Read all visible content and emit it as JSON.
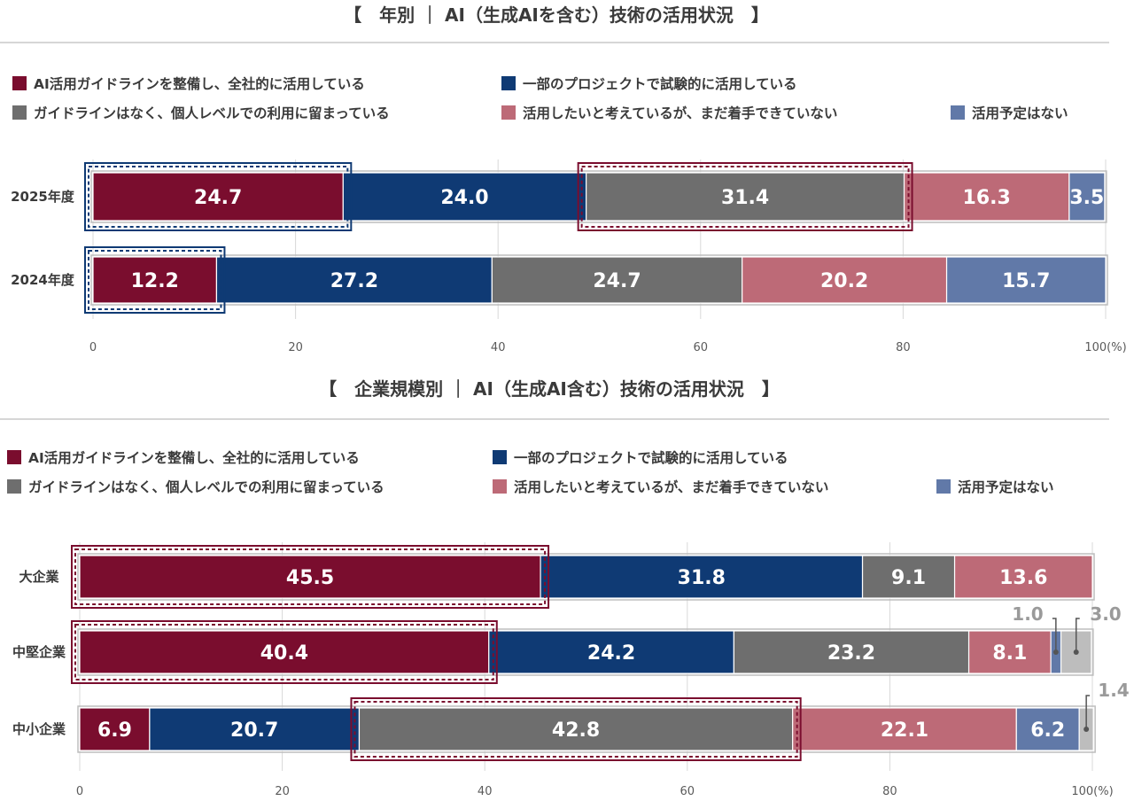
{
  "legend": [
    {
      "label": "AI活用ガイドラインを整備し、全社的に活用している",
      "color": "#7a0d2e"
    },
    {
      "label": "一部のプロジェクトで試験的に活用している",
      "color": "#0f3a74"
    },
    {
      "label": "ガイドラインはなく、個人レベルでの利用に留まっている",
      "color": "#6e6e6e"
    },
    {
      "label": "活用したいと考えているが、まだ着手できていない",
      "color": "#bd6a77"
    },
    {
      "label": "活用予定はない",
      "color": "#6179a8"
    }
  ],
  "chart_data": [
    {
      "type": "bar",
      "orientation": "horizontal-stacked",
      "title": "【　年別 ｜ AI（生成AIを含む）技術の活用状況　】",
      "categories": [
        "2025年度",
        "2024年度"
      ],
      "series": [
        {
          "name": "AI活用ガイドラインを整備し、全社的に活用している",
          "values": [
            24.7,
            12.2
          ]
        },
        {
          "name": "一部のプロジェクトで試験的に活用している",
          "values": [
            24.0,
            27.2
          ]
        },
        {
          "name": "ガイドラインはなく、個人レベルでの利用に留まっている",
          "values": [
            31.4,
            24.7
          ]
        },
        {
          "name": "活用したいと考えているが、まだ着手できていない",
          "values": [
            16.3,
            20.2
          ]
        },
        {
          "name": "活用予定はない",
          "values": [
            3.5,
            15.7
          ]
        }
      ],
      "xlim": [
        0,
        100
      ],
      "ticks": [
        "0",
        "20",
        "40",
        "60",
        "80",
        "100(%)"
      ],
      "highlights": [
        {
          "category": "2025年度",
          "series_index": 0,
          "style": "blue"
        },
        {
          "category": "2025年度",
          "series_index": 2,
          "style": "red"
        },
        {
          "category": "2024年度",
          "series_index": 0,
          "style": "blue"
        }
      ]
    },
    {
      "type": "bar",
      "orientation": "horizontal-stacked",
      "title": "【　企業規模別 ｜ AI（生成AI含む）技術の活用状況　】",
      "categories": [
        "大企業",
        "中堅企業",
        "中小企業"
      ],
      "series": [
        {
          "name": "AI活用ガイドラインを整備し、全社的に活用している",
          "values": [
            45.5,
            40.4,
            6.9
          ]
        },
        {
          "name": "一部のプロジェクトで試験的に活用している",
          "values": [
            31.8,
            24.2,
            20.7
          ]
        },
        {
          "name": "ガイドラインはなく、個人レベルでの利用に留まっている",
          "values": [
            9.1,
            23.2,
            42.8
          ]
        },
        {
          "name": "活用したいと考えているが、まだ着手できていない",
          "values": [
            13.6,
            8.1,
            22.1
          ]
        },
        {
          "name": "活用予定はない",
          "values": [
            0,
            1.0,
            6.2
          ]
        }
      ],
      "extra_segments": [
        {
          "category": "中堅企業",
          "value": 3.0,
          "label": "3.0",
          "color": "#bdbdbd"
        },
        {
          "category": "中小企業",
          "value": 1.4,
          "label": "1.4",
          "color": "#bdbdbd"
        }
      ],
      "callouts": [
        "1.0",
        "3.0",
        "1.4"
      ],
      "xlim": [
        0,
        100
      ],
      "ticks": [
        "0",
        "20",
        "40",
        "60",
        "80",
        "100(%)"
      ],
      "highlights": [
        {
          "category": "大企業",
          "series_index": 0,
          "style": "red"
        },
        {
          "category": "中堅企業",
          "series_index": 0,
          "style": "red"
        },
        {
          "category": "中小企業",
          "series_index": 2,
          "style": "red"
        }
      ]
    }
  ]
}
